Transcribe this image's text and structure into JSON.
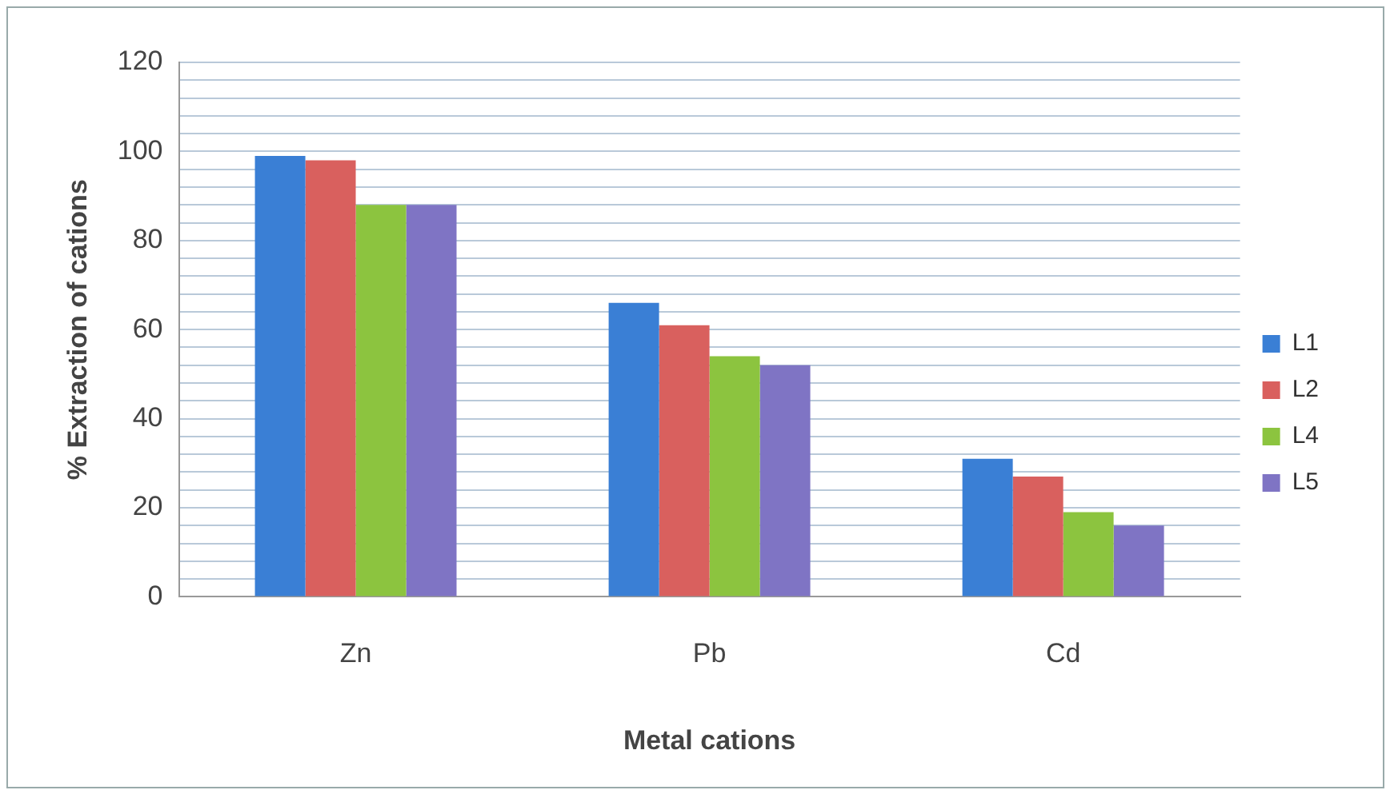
{
  "chart_data": {
    "type": "bar",
    "xlabel": "Metal cations",
    "ylabel": "% Extraction of cations",
    "categories": [
      "Zn",
      "Pb",
      "Cd"
    ],
    "series": [
      {
        "name": "L1",
        "color": "#3a7fd5",
        "values": [
          99,
          66,
          31
        ]
      },
      {
        "name": "L2",
        "color": "#d9605e",
        "values": [
          98,
          61,
          27
        ]
      },
      {
        "name": "L4",
        "color": "#8cc43f",
        "values": [
          88,
          54,
          19
        ]
      },
      {
        "name": "L5",
        "color": "#7f74c4",
        "values": [
          88,
          52,
          16
        ]
      }
    ],
    "ylim": [
      0,
      120
    ],
    "yticks": [
      0,
      {
        "value": 4,
        "label": null
      },
      {
        "value": 8,
        "label": null
      },
      {
        "value": 12,
        "label": null
      },
      {
        "value": 16,
        "label": null
      },
      20,
      {
        "value": 24,
        "label": null
      },
      {
        "value": 28,
        "label": null
      },
      {
        "value": 32,
        "label": null
      },
      {
        "value": 36,
        "label": null
      },
      40,
      {
        "value": 44,
        "label": null
      },
      {
        "value": 48,
        "label": null
      },
      {
        "value": 52,
        "label": null
      },
      {
        "value": 56,
        "label": null
      },
      60,
      {
        "value": 64,
        "label": null
      },
      {
        "value": 68,
        "label": null
      },
      {
        "value": 72,
        "label": null
      },
      {
        "value": 76,
        "label": null
      },
      80,
      {
        "value": 84,
        "label": null
      },
      {
        "value": 88,
        "label": null
      },
      {
        "value": 92,
        "label": null
      },
      {
        "value": 96,
        "label": null
      },
      100,
      {
        "value": 104,
        "label": null
      },
      {
        "value": 108,
        "label": null
      },
      {
        "value": 112,
        "label": null
      },
      {
        "value": 116,
        "label": null
      },
      120
    ],
    "grid": "y",
    "legend": "right"
  }
}
